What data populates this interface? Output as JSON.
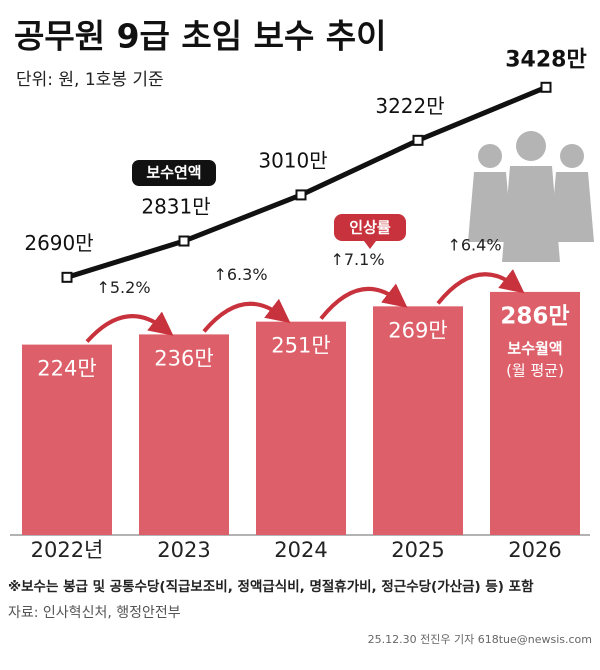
{
  "chart_data": {
    "type": "combo",
    "title": "공무원 9급 초임 보수 추이",
    "subtitle": "단위: 원, 1호봉 기준",
    "categories": [
      "2022년",
      "2023",
      "2024",
      "2025",
      "2026"
    ],
    "series": [
      {
        "name": "보수연액",
        "type": "line",
        "color": "#111111",
        "values": [
          2690,
          2831,
          3010,
          3222,
          3428
        ],
        "value_labels": [
          "2690만",
          "2831만",
          "3010만",
          "3222만",
          "3428만"
        ]
      },
      {
        "name": "보수월액",
        "note": "(월 평균)",
        "type": "bar",
        "color": "#dd5f69",
        "values": [
          224,
          236,
          251,
          269,
          286
        ],
        "value_labels": [
          "224만",
          "236만",
          "251만",
          "269만",
          "286만"
        ]
      }
    ],
    "rates": {
      "name": "인상률",
      "color": "#c8323c",
      "values": [
        5.2,
        6.3,
        7.1,
        6.4
      ],
      "value_labels": [
        "↑5.2%",
        "↑6.3%",
        "↑7.1%",
        "↑6.4%"
      ]
    },
    "footnote": "※보수는 봉급 및 공통수당(직급보조비, 정액급식비, 명절휴가비, 정근수당(가산금) 등) 포함",
    "source": "자료: 인사혁신처, 행정안전부",
    "credit": "25.12.30 전진우 기자  618tue@newsis.com"
  }
}
